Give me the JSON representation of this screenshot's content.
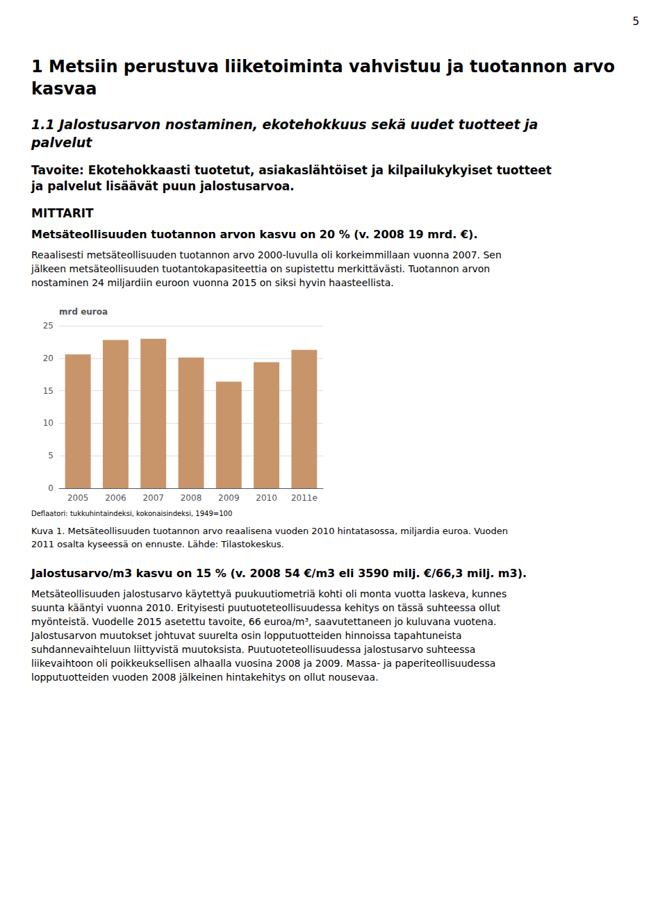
{
  "page": {
    "page_number": "5",
    "title": [
      "1 Metsiin perustuva liiketoiminta vahvistuu ja tuotannon arvo",
      "kasvaa"
    ],
    "subtitle": [
      "1.1 Jalostusarvon nostaminen, ekotehokkuus sekä uudet tuotteet ja",
      "palvelut"
    ],
    "goal": [
      "Tavoite: Ekotehokkaasti tuotetut, asiakaslähtöiset ja kilpailukykyiset tuotteet",
      "ja palvelut lisäävät puun jalostusarvoa."
    ],
    "heading": "MITTARIT",
    "section1_bold": "Metsäteollisuuden tuotannon arvon kasvu on 20 % (v. 2008 19 mrd. €).",
    "section1_text": [
      "Reaalisesti metsäteollisuuden tuotannon arvo 2000-luvulla oli korkeimmillaan vuonna 2007. Sen",
      "jälkeen metsäteollisuuden tuotantokapasiteettia on supistettu merkittävästi. Tuotannon arvon",
      "nostaminen 24 miljardiin euroon vuonna 2015 on siksi hyvin haasteellista."
    ],
    "section2_bold": "Jalostusarvo/m3 kasvu on 15 % (v. 2008 54 €/m3 eli 3590 milj. €/66,3 milj. m3).",
    "section2_text": [
      "Metsäteollisuuden jalostusarvo käytettyä puukuutiometriä kohti oli monta vuotta laskeva, kunnes",
      "suunta kääntyi vuonna 2010. Erityisesti puutuoteteollisuudessa kehitys on tässä suhteessa ollut",
      "myönteistä. Vuodelle 2015 asetettu tavoite, 66 euroa/m³, saavutettaneen jo kuluvana vuotena.",
      "Jalostusarvon muutokset johtuvat suurelta osin lopputuotteiden hinnoissa tapahtuneista",
      "suhdannevaihteluun liittyvistä muutoksista. Puutuoteteollisuudessa jalostusarvo suhteessa",
      "liikevaihtoon oli poikkeuksellisen alhaalla vuosina 2008 ja 2009. Massa- ja paperiteollisuudessa",
      "lopputuotteiden vuoden 2008 jälkeinen hintakehitys on ollut nousevaa."
    ]
  },
  "chart_data": {
    "type": "bar",
    "ylabel": "mrd euroa",
    "categories": [
      "2005",
      "2006",
      "2007",
      "2008",
      "2009",
      "2010",
      "2011e"
    ],
    "values": [
      20.6,
      22.8,
      23.0,
      20.1,
      16.4,
      19.4,
      21.3
    ],
    "color": "#C8956A",
    "ylim": [
      0,
      25
    ],
    "yticks": [
      0,
      5,
      10,
      15,
      20,
      25
    ],
    "grid": true,
    "annotations": [
      "Deflaatori: tukkuhintaindeksi, kokonaisindeksi, 1949=100"
    ],
    "caption": [
      "Kuva 1. Metsäteollisuuden tuotannon arvo reaalisena vuoden 2010 hintatasossa, miljardia euroa. Vuoden",
      "2011 osalta kyseessä on ennuste. Lähde: Tilastokeskus."
    ]
  }
}
